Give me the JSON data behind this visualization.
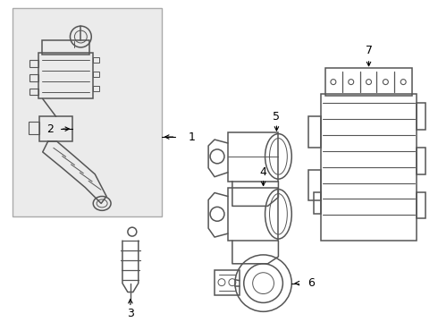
{
  "background_color": "#ffffff",
  "line_color": "#555555",
  "fig_width": 4.9,
  "fig_height": 3.6,
  "dpi": 100,
  "box_fill": "#e8e8e8",
  "box_border": "#888888"
}
